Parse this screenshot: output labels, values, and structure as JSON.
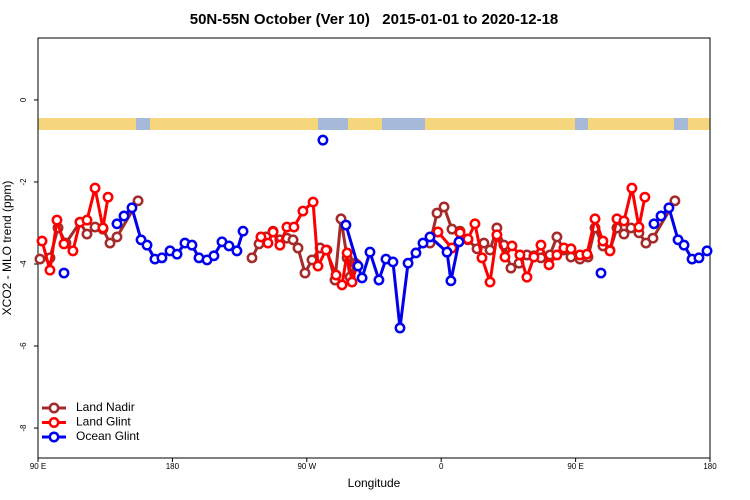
{
  "chart_data": {
    "type": "line",
    "title": "50N-55N October (Ver 10)   2015-01-01 to 2020-12-18",
    "x_label": "Longitude",
    "y_label": "XCO2 - MLO trend (ppm)",
    "xlim": [
      90,
      540
    ],
    "ylim": [
      -8.73,
      1.51
    ],
    "xticks": [
      {
        "value": 90,
        "label": "90 E"
      },
      180,
      {
        "value": 270,
        "label": "90 W"
      },
      {
        "value": 360,
        "label": "0"
      },
      {
        "value": 450,
        "label": "90 E"
      },
      {
        "value": 540,
        "label": "180"
      }
    ],
    "yticks": [
      -8,
      -6,
      -4,
      -2,
      0
    ],
    "legend": "bottomleft",
    "series": [
      {
        "name": "Land Nadir",
        "color": "#a52a2a",
        "x": [
          91.3,
          98.0,
          103.4,
          108.7,
          118.1,
          122.8,
          128.2,
          133.5,
          138.2,
          142.9,
          157.0,
          null,
          233.3,
          238.0,
          242.7,
          247.4,
          252.0,
          256.7,
          260.8,
          264.1,
          268.8,
          273.5,
          278.9,
          283.5,
          288.9,
          292.9,
          297.0,
          299.0,
          302.3,
          null,
          352.5,
          357.2,
          361.9,
          367.2,
          372.6,
          377.9,
          384.0,
          388.6,
          392.7,
          397.3,
          402.0,
          406.7,
          412.1,
          417.4,
          422.1,
          426.8,
          432.8,
          437.5,
          442.2,
          446.9,
          452.9,
          458.3,
          463.0,
          468.3,
          473.0,
          477.7,
          482.4,
          487.1,
          492.4,
          497.1,
          501.8,
          516.5
        ],
        "values": [
          -3.88,
          -3.85,
          -3.12,
          -3.49,
          -2.98,
          -3.27,
          -3.1,
          -3.15,
          -3.49,
          -3.34,
          -2.46,
          null,
          -3.85,
          -3.51,
          -3.34,
          -3.2,
          -3.41,
          -3.37,
          -3.41,
          -3.61,
          -4.22,
          -3.9,
          -3.61,
          -3.66,
          -4.39,
          -2.9,
          -3.85,
          -4.32,
          -3.98,
          null,
          -3.49,
          -2.76,
          -2.61,
          -3.15,
          -3.2,
          -3.41,
          -3.63,
          -3.49,
          -3.66,
          -3.12,
          -3.54,
          -4.1,
          -3.98,
          -3.78,
          -3.8,
          -3.85,
          -3.78,
          -3.34,
          -3.66,
          -3.83,
          -3.88,
          -3.83,
          -3.12,
          -3.56,
          -3.66,
          -3.12,
          -3.27,
          -3.12,
          -3.24,
          -3.49,
          -3.37,
          -2.46
        ]
      },
      {
        "name": "Land Glint",
        "color": "#ff0000",
        "x": [
          92.7,
          98.0,
          102.7,
          107.4,
          113.4,
          118.1,
          122.8,
          128.2,
          133.5,
          136.9,
          null,
          239.3,
          244.0,
          247.4,
          252.0,
          256.7,
          261.4,
          267.4,
          274.2,
          277.5,
          282.9,
          289.6,
          293.6,
          297.0,
          300.3,
          303.6,
          null,
          357.8,
          367.2,
          372.6,
          377.9,
          382.6,
          387.3,
          392.7,
          397.3,
          402.7,
          407.4,
          412.7,
          417.4,
          422.1,
          426.8,
          432.2,
          437.5,
          442.2,
          446.9,
          452.9,
          457.6,
          463.0,
          468.3,
          473.0,
          477.7,
          482.4,
          487.7,
          492.4,
          496.4
        ],
        "values": [
          -3.44,
          -4.15,
          -2.93,
          -3.51,
          -3.68,
          -2.98,
          -2.93,
          -2.15,
          -3.12,
          -2.37,
          null,
          -3.34,
          -3.49,
          -3.22,
          -3.54,
          -3.1,
          -3.1,
          -2.71,
          -2.49,
          -4.05,
          -3.66,
          -4.27,
          -4.51,
          -3.73,
          -4.44,
          -4.02,
          null,
          -3.22,
          -3.61,
          -3.24,
          -3.39,
          -3.02,
          -3.85,
          -4.44,
          -3.29,
          -3.83,
          -3.56,
          -3.78,
          -4.32,
          -3.83,
          -3.54,
          -4.02,
          -3.78,
          -3.61,
          -3.63,
          -3.78,
          -3.76,
          -2.9,
          -3.44,
          -3.68,
          -2.9,
          -2.95,
          -2.15,
          -3.1,
          -2.37
        ]
      },
      {
        "name": "Ocean Glint",
        "color": "#0000ee",
        "x": [
          107.4,
          null,
          142.9,
          147.6,
          152.9,
          159.0,
          163.0,
          168.3,
          173.0,
          178.4,
          183.1,
          188.4,
          193.1,
          197.8,
          203.2,
          207.8,
          213.2,
          217.9,
          223.2,
          227.3,
          null,
          280.8,
          null,
          296.2,
          304.3,
          307.0,
          312.3,
          318.3,
          323.0,
          327.7,
          332.4,
          337.8,
          343.1,
          347.8,
          352.5,
          363.9,
          366.5,
          371.9,
          null,
          467.0,
          null,
          502.5,
          507.2,
          512.5,
          518.6,
          522.6,
          528.0,
          532.6,
          538.0
        ],
        "values": [
          -4.22,
          null,
          -3.02,
          -2.83,
          -2.63,
          -3.41,
          -3.54,
          -3.88,
          -3.85,
          -3.68,
          -3.76,
          -3.49,
          -3.54,
          -3.85,
          -3.9,
          -3.8,
          -3.46,
          -3.56,
          -3.68,
          -3.2,
          null,
          -0.98,
          null,
          -3.05,
          -4.05,
          -4.34,
          -3.71,
          -4.39,
          -3.88,
          -3.95,
          -5.56,
          -3.98,
          -3.73,
          -3.49,
          -3.34,
          -3.71,
          -4.41,
          -3.46,
          null,
          -4.22,
          null,
          -3.02,
          -2.83,
          -2.63,
          -3.41,
          -3.54,
          -3.88,
          -3.85,
          -3.68
        ]
      }
    ]
  }
}
